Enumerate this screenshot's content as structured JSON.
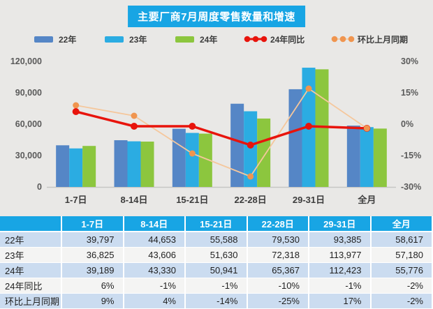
{
  "colors": {
    "bg": "#E9E8E6",
    "title-bg": "#18A5E4",
    "title-fg": "#FFFFFF",
    "header-bg": "#18A5E4",
    "header-fg": "#FFFFFF",
    "row-alt": "#CBDCF0",
    "row-plain": "#F4F4F3",
    "cell-fg": "#1F1F1F",
    "axis-fg": "#5A5A5A",
    "cat-fg": "#3C3C3C",
    "legend-fg": "#3C3C3C",
    "baseline": "#C6C6C4"
  },
  "title": "主要厂商7月周度零售数量和增速",
  "legend": [
    {
      "label": "22年",
      "type": "bar",
      "color": "#5586C6"
    },
    {
      "label": "23年",
      "type": "bar",
      "color": "#2BACE2"
    },
    {
      "label": "24年",
      "type": "bar",
      "color": "#8CC63E"
    },
    {
      "label": "24年同比",
      "type": "line",
      "color": "#E8140C",
      "marker": "#E8140C"
    },
    {
      "label": "环比上月同期",
      "type": "dots",
      "color": "#F5C79C",
      "marker": "#F0954F"
    }
  ],
  "chart_data": {
    "type": "combo_bar_line",
    "title": "主要厂商7月周度零售数量和增速",
    "categories": [
      "1-7日",
      "8-14日",
      "15-21日",
      "22-28日",
      "29-31日",
      "全月"
    ],
    "bar_series": [
      {
        "name": "22年",
        "color": "#5586C6",
        "values": [
          39797,
          44653,
          55588,
          79530,
          93385,
          58617
        ]
      },
      {
        "name": "23年",
        "color": "#2BACE2",
        "values": [
          36825,
          43606,
          51630,
          72318,
          113977,
          57180
        ]
      },
      {
        "name": "24年",
        "color": "#8CC63E",
        "values": [
          39189,
          43330,
          50941,
          65367,
          112423,
          55776
        ]
      }
    ],
    "line_series": [
      {
        "name": "24年同比",
        "line_color": "#E8140C",
        "marker_color": "#E8140C",
        "width": 3.5,
        "marker_r": 5,
        "values_pct": [
          6,
          -1,
          -1,
          -10,
          -1,
          -2
        ]
      },
      {
        "name": "环比上月同期",
        "line_color": "#F5C79C",
        "marker_color": "#F0954F",
        "width": 1.8,
        "marker_r": 4.5,
        "values_pct": [
          9,
          4,
          -14,
          -25,
          17,
          -2
        ]
      }
    ],
    "left_axis": {
      "min": 0,
      "max": 120000,
      "ticks": [
        "120,000",
        "90,000",
        "60,000",
        "30,000",
        "0"
      ]
    },
    "right_axis": {
      "min": -30,
      "max": 30,
      "ticks": [
        "30%",
        "15%",
        "0%",
        "-15%",
        "-30%"
      ]
    },
    "grid": false,
    "legend_position": "top"
  },
  "table": {
    "header": [
      "",
      "1-7日",
      "8-14日",
      "15-21日",
      "22-28日",
      "29-31日",
      "全月"
    ],
    "rows": [
      {
        "label": "22年",
        "values": [
          "39,797",
          "44,653",
          "55,588",
          "79,530",
          "93,385",
          "58,617"
        ]
      },
      {
        "label": "23年",
        "values": [
          "36,825",
          "43,606",
          "51,630",
          "72,318",
          "113,977",
          "57,180"
        ]
      },
      {
        "label": "24年",
        "values": [
          "39,189",
          "43,330",
          "50,941",
          "65,367",
          "112,423",
          "55,776"
        ]
      },
      {
        "label": "24年同比",
        "values": [
          "6%",
          "-1%",
          "-1%",
          "-10%",
          "-1%",
          "-2%"
        ]
      },
      {
        "label": "环比上月同期",
        "values": [
          "9%",
          "4%",
          "-14%",
          "-25%",
          "17%",
          "-2%"
        ]
      }
    ]
  }
}
